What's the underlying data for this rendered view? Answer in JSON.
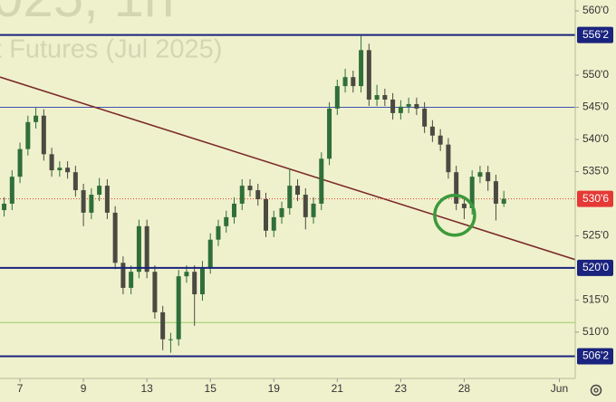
{
  "chart_data": {
    "type": "candlestick",
    "watermark": [
      "025, 1h",
      "t Futures (Jul 2025)"
    ],
    "x": [
      -0.5,
      -0.25,
      0,
      0.25,
      0.5,
      0.75,
      1,
      1.25,
      1.5,
      1.75,
      2,
      2.25,
      2.5,
      2.75,
      3,
      3.25,
      3.5,
      3.75,
      4,
      4.25,
      4.5,
      4.75,
      5,
      5.25,
      5.5,
      5.75,
      6,
      6.25,
      6.5,
      6.75,
      7,
      7.25,
      7.5,
      7.75,
      8,
      8.25,
      8.5,
      8.75,
      9,
      9.25,
      9.5,
      9.75,
      10,
      10.25,
      10.5,
      10.75,
      11,
      11.25,
      11.5,
      11.75,
      12,
      12.25,
      12.5,
      12.75,
      13,
      13.25,
      13.5,
      13.75,
      14,
      14.25,
      14.5,
      14.75,
      15,
      15.25
    ],
    "open": [
      529.0,
      530.0,
      534.2,
      538.5,
      542.7,
      543.7,
      537.7,
      535.2,
      535.6,
      534.9,
      532.1,
      528.6,
      531.4,
      532.8,
      528.6,
      520.8,
      516.9,
      519.4,
      526.5,
      519.4,
      513.1,
      508.9,
      508.9,
      518.7,
      519.4,
      515.9,
      520.1,
      524.4,
      526.5,
      527.9,
      530.0,
      532.8,
      532.1,
      530.7,
      525.8,
      527.9,
      529.3,
      532.8,
      531.4,
      527.9,
      530.0,
      537.0,
      544.8,
      548.3,
      549.7,
      548.3,
      553.9,
      546.2,
      546.9,
      546.2,
      544.1,
      545.1,
      545.5,
      544.8,
      542.0,
      540.6,
      539.2,
      534.9,
      530.0,
      529.3,
      534.2,
      534.9,
      533.5,
      530.0
    ],
    "high": [
      531.0,
      535.2,
      539.5,
      543.7,
      545.0,
      544.7,
      538.7,
      536.6,
      536.6,
      535.9,
      533.1,
      532.4,
      534.0,
      533.8,
      529.6,
      521.8,
      520.4,
      527.5,
      527.5,
      520.4,
      514.1,
      509.9,
      519.7,
      520.4,
      520.4,
      521.1,
      525.4,
      527.5,
      528.9,
      531.0,
      533.8,
      533.8,
      533.1,
      531.7,
      528.9,
      530.3,
      535.5,
      533.8,
      532.4,
      531.0,
      538.0,
      545.8,
      549.3,
      551.0,
      550.7,
      556.1,
      554.9,
      548.5,
      547.9,
      547.2,
      546.1,
      546.5,
      546.5,
      545.8,
      543.0,
      541.6,
      540.2,
      535.9,
      531.0,
      535.2,
      535.9,
      535.9,
      534.5,
      532.0
    ],
    "low": [
      528.0,
      529.0,
      533.2,
      537.5,
      541.7,
      536.7,
      534.2,
      534.2,
      533.9,
      531.1,
      526.5,
      527.6,
      530.4,
      527.6,
      519.8,
      515.9,
      515.9,
      518.4,
      518.4,
      512.1,
      507.2,
      506.8,
      507.9,
      517.7,
      511.0,
      514.9,
      519.1,
      523.4,
      525.5,
      526.9,
      529.0,
      531.1,
      529.7,
      524.8,
      524.8,
      526.9,
      528.3,
      530.4,
      526.0,
      526.9,
      529.0,
      536.0,
      543.8,
      547.3,
      547.3,
      547.3,
      545.2,
      545.2,
      545.2,
      543.1,
      543.1,
      544.1,
      543.8,
      541.0,
      539.6,
      538.2,
      533.9,
      529.0,
      527.6,
      528.3,
      533.2,
      532.0,
      527.4,
      529.5
    ],
    "close": [
      530.0,
      534.2,
      538.5,
      542.7,
      543.7,
      537.7,
      535.2,
      535.6,
      534.9,
      532.1,
      528.6,
      531.4,
      532.8,
      528.6,
      520.8,
      516.9,
      519.4,
      526.5,
      519.4,
      513.1,
      508.9,
      508.9,
      518.7,
      519.4,
      515.9,
      520.1,
      524.4,
      526.5,
      527.9,
      530.0,
      532.8,
      532.1,
      530.7,
      525.8,
      527.9,
      529.3,
      532.8,
      531.4,
      527.9,
      530.0,
      537.0,
      544.8,
      548.3,
      549.7,
      548.3,
      553.9,
      546.2,
      546.9,
      546.2,
      544.1,
      545.1,
      545.5,
      544.8,
      542.0,
      540.6,
      539.2,
      534.9,
      530.0,
      529.3,
      534.2,
      534.9,
      533.5,
      530.0,
      530.75
    ],
    "up_color": "#2f6f3a",
    "down_color": "#4a4a42",
    "xlim": [
      -0.63,
      17.5
    ],
    "ylim": [
      502.8,
      561.7
    ],
    "xticks": [
      {
        "value": 0,
        "label": "7"
      },
      {
        "value": 2,
        "label": "9"
      },
      {
        "value": 4,
        "label": "13"
      },
      {
        "value": 6,
        "label": "15"
      },
      {
        "value": 8,
        "label": "19"
      },
      {
        "value": 10,
        "label": "21"
      },
      {
        "value": 12,
        "label": "23"
      },
      {
        "value": 14,
        "label": "28"
      },
      {
        "value": 17,
        "label": "Jun"
      }
    ],
    "yticks": [
      {
        "value": 560,
        "label": "560'0"
      },
      {
        "value": 550,
        "label": "550'0"
      },
      {
        "value": 545,
        "label": "545'0"
      },
      {
        "value": 540,
        "label": "540'0"
      },
      {
        "value": 535,
        "label": "535'0"
      },
      {
        "value": 525,
        "label": "525'0"
      },
      {
        "value": 515,
        "label": "515'0"
      },
      {
        "value": 510,
        "label": "510'0"
      }
    ],
    "levels": [
      {
        "value": 556.25,
        "label": "556'2",
        "color": "#1a237e"
      },
      {
        "value": 520,
        "label": "520'0",
        "color": "#1a237e"
      },
      {
        "value": 506.25,
        "label": "506'2",
        "color": "#1a237e"
      }
    ],
    "lines": [
      {
        "value": 545,
        "color": "#3f51b5"
      },
      {
        "value": 511.5,
        "color": "#9ccc65"
      }
    ],
    "last_price": {
      "value": 530.75,
      "label": "530'6",
      "color": "#e53935"
    },
    "trendline": {
      "x": [
        -0.63,
        17.5
      ],
      "y": [
        549.7,
        521.3
      ],
      "color": "#7b2a2a"
    },
    "circle": {
      "x": 13.7,
      "y": 528.2,
      "color": "#3c9a3c"
    }
  }
}
